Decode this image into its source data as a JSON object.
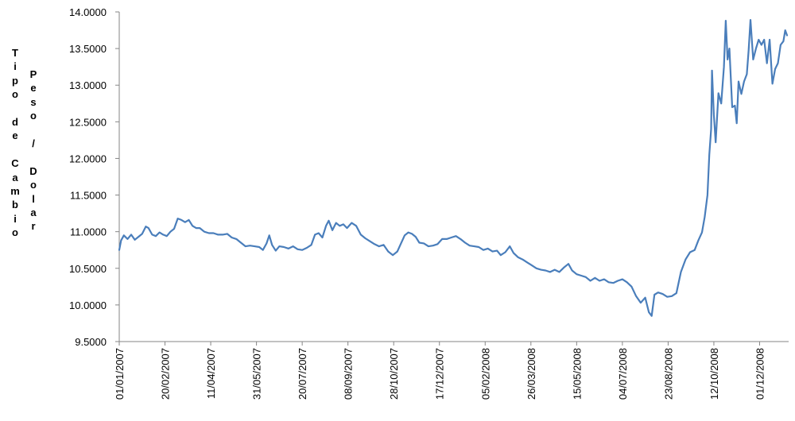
{
  "chart_data": {
    "type": "line",
    "ylabel_col1": "Tipo de Cambio",
    "ylabel_col2": "Peso / Dolar",
    "ylim": [
      9.5,
      14.0
    ],
    "yticks": [
      "9.5000",
      "10.0000",
      "10.5000",
      "11.0000",
      "11.5000",
      "12.0000",
      "12.5000",
      "13.0000",
      "13.5000",
      "14.0000"
    ],
    "xlim": [
      "2007-01-01",
      "2008-12-31"
    ],
    "xticks": [
      "01/01/2007",
      "20/02/2007",
      "11/04/2007",
      "31/05/2007",
      "20/07/2007",
      "08/09/2007",
      "28/10/2007",
      "17/12/2007",
      "05/02/2008",
      "26/03/2008",
      "15/05/2008",
      "04/07/2008",
      "23/08/2008",
      "12/10/2008",
      "01/12/2008"
    ],
    "grid": false,
    "legend": "none",
    "series": [
      {
        "color": "#4a7ebb",
        "points": [
          [
            "2007-01-01",
            10.75
          ],
          [
            "2007-01-03",
            10.88
          ],
          [
            "2007-01-06",
            10.95
          ],
          [
            "2007-01-10",
            10.9
          ],
          [
            "2007-01-14",
            10.96
          ],
          [
            "2007-01-18",
            10.89
          ],
          [
            "2007-01-22",
            10.93
          ],
          [
            "2007-01-26",
            10.97
          ],
          [
            "2007-01-30",
            11.07
          ],
          [
            "2007-02-02",
            11.05
          ],
          [
            "2007-02-06",
            10.96
          ],
          [
            "2007-02-10",
            10.94
          ],
          [
            "2007-02-14",
            10.99
          ],
          [
            "2007-02-18",
            10.96
          ],
          [
            "2007-02-22",
            10.94
          ],
          [
            "2007-02-26",
            11.0
          ],
          [
            "2007-03-02",
            11.04
          ],
          [
            "2007-03-06",
            11.18
          ],
          [
            "2007-03-10",
            11.16
          ],
          [
            "2007-03-14",
            11.13
          ],
          [
            "2007-03-18",
            11.16
          ],
          [
            "2007-03-22",
            11.08
          ],
          [
            "2007-03-26",
            11.05
          ],
          [
            "2007-03-30",
            11.05
          ],
          [
            "2007-04-04",
            11.0
          ],
          [
            "2007-04-09",
            10.98
          ],
          [
            "2007-04-14",
            10.98
          ],
          [
            "2007-04-19",
            10.96
          ],
          [
            "2007-04-24",
            10.96
          ],
          [
            "2007-04-29",
            10.97
          ],
          [
            "2007-05-04",
            10.92
          ],
          [
            "2007-05-09",
            10.9
          ],
          [
            "2007-05-14",
            10.85
          ],
          [
            "2007-05-19",
            10.8
          ],
          [
            "2007-05-24",
            10.81
          ],
          [
            "2007-05-29",
            10.8
          ],
          [
            "2007-06-03",
            10.79
          ],
          [
            "2007-06-07",
            10.75
          ],
          [
            "2007-06-11",
            10.84
          ],
          [
            "2007-06-14",
            10.95
          ],
          [
            "2007-06-17",
            10.82
          ],
          [
            "2007-06-21",
            10.74
          ],
          [
            "2007-06-25",
            10.8
          ],
          [
            "2007-06-30",
            10.79
          ],
          [
            "2007-07-05",
            10.77
          ],
          [
            "2007-07-10",
            10.8
          ],
          [
            "2007-07-15",
            10.76
          ],
          [
            "2007-07-20",
            10.75
          ],
          [
            "2007-07-25",
            10.78
          ],
          [
            "2007-07-30",
            10.82
          ],
          [
            "2007-08-03",
            10.96
          ],
          [
            "2007-08-07",
            10.98
          ],
          [
            "2007-08-11",
            10.92
          ],
          [
            "2007-08-15",
            11.08
          ],
          [
            "2007-08-18",
            11.15
          ],
          [
            "2007-08-22",
            11.02
          ],
          [
            "2007-08-26",
            11.12
          ],
          [
            "2007-08-30",
            11.08
          ],
          [
            "2007-09-03",
            11.1
          ],
          [
            "2007-09-07",
            11.05
          ],
          [
            "2007-09-12",
            11.12
          ],
          [
            "2007-09-17",
            11.08
          ],
          [
            "2007-09-22",
            10.96
          ],
          [
            "2007-09-27",
            10.91
          ],
          [
            "2007-10-02",
            10.87
          ],
          [
            "2007-10-07",
            10.83
          ],
          [
            "2007-10-12",
            10.8
          ],
          [
            "2007-10-17",
            10.82
          ],
          [
            "2007-10-22",
            10.73
          ],
          [
            "2007-10-27",
            10.68
          ],
          [
            "2007-11-01",
            10.73
          ],
          [
            "2007-11-05",
            10.84
          ],
          [
            "2007-11-09",
            10.95
          ],
          [
            "2007-11-13",
            10.99
          ],
          [
            "2007-11-17",
            10.97
          ],
          [
            "2007-11-21",
            10.93
          ],
          [
            "2007-11-25",
            10.85
          ],
          [
            "2007-11-30",
            10.84
          ],
          [
            "2007-12-05",
            10.8
          ],
          [
            "2007-12-10",
            10.81
          ],
          [
            "2007-12-15",
            10.83
          ],
          [
            "2007-12-20",
            10.9
          ],
          [
            "2007-12-25",
            10.9
          ],
          [
            "2007-12-30",
            10.92
          ],
          [
            "2008-01-04",
            10.94
          ],
          [
            "2008-01-09",
            10.9
          ],
          [
            "2008-01-14",
            10.85
          ],
          [
            "2008-01-19",
            10.81
          ],
          [
            "2008-01-24",
            10.8
          ],
          [
            "2008-01-29",
            10.79
          ],
          [
            "2008-02-03",
            10.75
          ],
          [
            "2008-02-08",
            10.77
          ],
          [
            "2008-02-13",
            10.73
          ],
          [
            "2008-02-18",
            10.74
          ],
          [
            "2008-02-22",
            10.68
          ],
          [
            "2008-02-27",
            10.72
          ],
          [
            "2008-03-03",
            10.8
          ],
          [
            "2008-03-07",
            10.71
          ],
          [
            "2008-03-12",
            10.65
          ],
          [
            "2008-03-17",
            10.62
          ],
          [
            "2008-03-22",
            10.58
          ],
          [
            "2008-03-27",
            10.54
          ],
          [
            "2008-04-01",
            10.5
          ],
          [
            "2008-04-06",
            10.48
          ],
          [
            "2008-04-11",
            10.47
          ],
          [
            "2008-04-16",
            10.45
          ],
          [
            "2008-04-21",
            10.48
          ],
          [
            "2008-04-26",
            10.45
          ],
          [
            "2008-05-01",
            10.51
          ],
          [
            "2008-05-06",
            10.56
          ],
          [
            "2008-05-10",
            10.47
          ],
          [
            "2008-05-15",
            10.42
          ],
          [
            "2008-05-20",
            10.4
          ],
          [
            "2008-05-25",
            10.38
          ],
          [
            "2008-05-30",
            10.33
          ],
          [
            "2008-06-04",
            10.37
          ],
          [
            "2008-06-09",
            10.33
          ],
          [
            "2008-06-14",
            10.35
          ],
          [
            "2008-06-19",
            10.31
          ],
          [
            "2008-06-24",
            10.3
          ],
          [
            "2008-06-29",
            10.33
          ],
          [
            "2008-07-04",
            10.35
          ],
          [
            "2008-07-09",
            10.31
          ],
          [
            "2008-07-14",
            10.25
          ],
          [
            "2008-07-19",
            10.12
          ],
          [
            "2008-07-24",
            10.03
          ],
          [
            "2008-07-29",
            10.1
          ],
          [
            "2008-08-02",
            9.9
          ],
          [
            "2008-08-05",
            9.85
          ],
          [
            "2008-08-08",
            10.14
          ],
          [
            "2008-08-12",
            10.17
          ],
          [
            "2008-08-17",
            10.15
          ],
          [
            "2008-08-22",
            10.11
          ],
          [
            "2008-08-27",
            10.12
          ],
          [
            "2008-09-01",
            10.16
          ],
          [
            "2008-09-06",
            10.45
          ],
          [
            "2008-09-11",
            10.62
          ],
          [
            "2008-09-16",
            10.72
          ],
          [
            "2008-09-21",
            10.75
          ],
          [
            "2008-09-25",
            10.88
          ],
          [
            "2008-09-29",
            10.99
          ],
          [
            "2008-10-02",
            11.2
          ],
          [
            "2008-10-05",
            11.5
          ],
          [
            "2008-10-07",
            12.05
          ],
          [
            "2008-10-09",
            12.4
          ],
          [
            "2008-10-10",
            13.2
          ],
          [
            "2008-10-12",
            12.6
          ],
          [
            "2008-10-14",
            12.22
          ],
          [
            "2008-10-17",
            12.89
          ],
          [
            "2008-10-20",
            12.75
          ],
          [
            "2008-10-23",
            13.25
          ],
          [
            "2008-10-25",
            13.88
          ],
          [
            "2008-10-27",
            13.35
          ],
          [
            "2008-10-29",
            13.5
          ],
          [
            "2008-11-01",
            12.7
          ],
          [
            "2008-11-04",
            12.72
          ],
          [
            "2008-11-06",
            12.48
          ],
          [
            "2008-11-08",
            13.05
          ],
          [
            "2008-11-11",
            12.88
          ],
          [
            "2008-11-14",
            13.05
          ],
          [
            "2008-11-17",
            13.15
          ],
          [
            "2008-11-19",
            13.48
          ],
          [
            "2008-11-21",
            13.89
          ],
          [
            "2008-11-24",
            13.35
          ],
          [
            "2008-11-27",
            13.5
          ],
          [
            "2008-11-30",
            13.62
          ],
          [
            "2008-12-03",
            13.55
          ],
          [
            "2008-12-06",
            13.62
          ],
          [
            "2008-12-09",
            13.3
          ],
          [
            "2008-12-12",
            13.62
          ],
          [
            "2008-12-15",
            13.02
          ],
          [
            "2008-12-18",
            13.22
          ],
          [
            "2008-12-21",
            13.3
          ],
          [
            "2008-12-24",
            13.55
          ],
          [
            "2008-12-27",
            13.6
          ],
          [
            "2008-12-29",
            13.75
          ],
          [
            "2008-12-31",
            13.68
          ]
        ]
      }
    ]
  }
}
